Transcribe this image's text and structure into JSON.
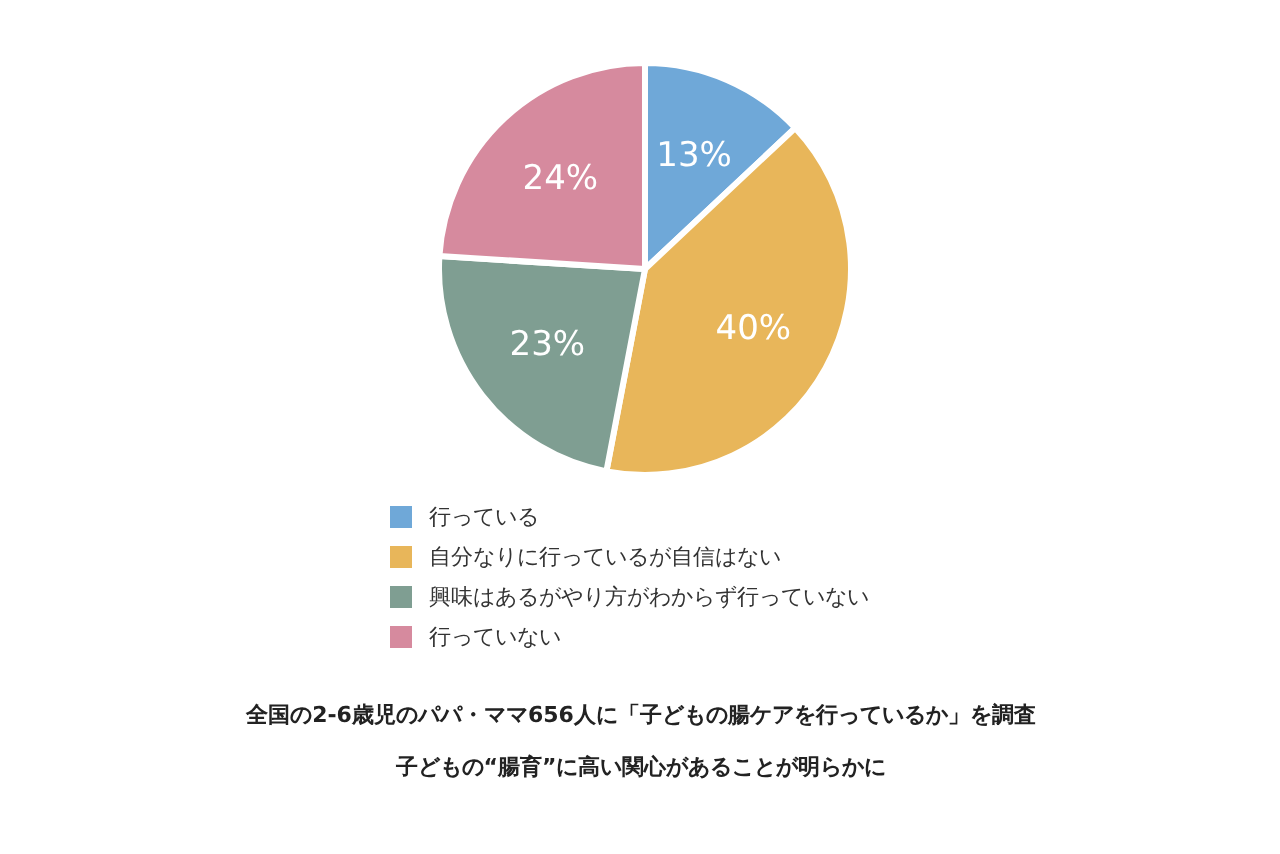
{
  "chart_data": {
    "type": "pie",
    "categories": [
      "行っている",
      "自分なりに行っているが自信はない",
      "興味はあるがやり方がわからず行っていない",
      "行っていない"
    ],
    "values": [
      13,
      40,
      23,
      24
    ],
    "colors": [
      "#6fa8d8",
      "#e8b65a",
      "#7f9e92",
      "#d68a9e"
    ],
    "value_labels": [
      "13%",
      "40%",
      "23%",
      "24%"
    ],
    "legend": "bottom",
    "annotations": [
      "全国の2-6歳児のパパ・ママ656人に「子どもの腸ケアを行っているか」を調査",
      "子どもの“腸育”に高い関心があることが明らかに"
    ]
  }
}
